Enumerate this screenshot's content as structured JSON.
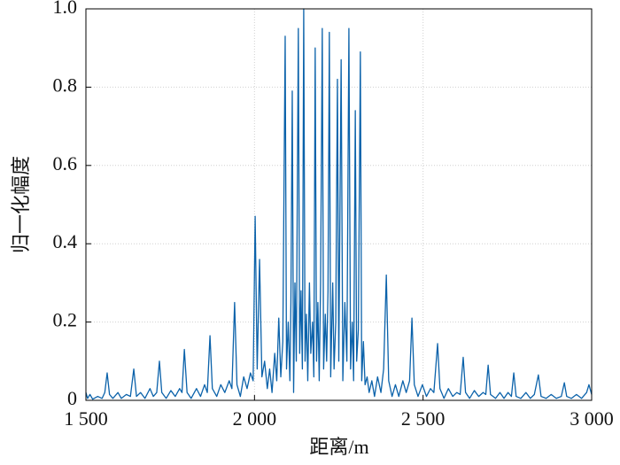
{
  "chart_data": {
    "type": "line",
    "xlabel": "距离/m",
    "ylabel": "归一化幅度",
    "color": "#0b62aa",
    "grid": true,
    "xlim": [
      1500,
      3000
    ],
    "ylim": [
      0,
      1
    ],
    "xticks": [
      {
        "value": 1500,
        "label": "1 500"
      },
      {
        "value": 2000,
        "label": "2 000"
      },
      {
        "value": 2500,
        "label": "2 500"
      },
      {
        "value": 3000,
        "label": "3 000"
      }
    ],
    "yticks": [
      0,
      0.2,
      0.4,
      0.6,
      0.8,
      {
        "value": 1,
        "label": "1.0"
      }
    ],
    "x": [
      1500,
      1505,
      1512,
      1520,
      1535,
      1548,
      1556,
      1563,
      1570,
      1580,
      1595,
      1605,
      1620,
      1632,
      1642,
      1650,
      1662,
      1675,
      1690,
      1700,
      1710,
      1718,
      1725,
      1738,
      1752,
      1765,
      1778,
      1785,
      1792,
      1800,
      1812,
      1828,
      1840,
      1852,
      1860,
      1868,
      1875,
      1888,
      1900,
      1912,
      1925,
      1933,
      1941,
      1948,
      1958,
      1968,
      1978,
      1988,
      1996,
      2002,
      2008,
      2015,
      2022,
      2030,
      2038,
      2045,
      2052,
      2060,
      2066,
      2072,
      2078,
      2084,
      2091,
      2095,
      2100,
      2105,
      2108,
      2112,
      2116,
      2120,
      2124,
      2130,
      2134,
      2138,
      2142,
      2146,
      2150,
      2154,
      2158,
      2163,
      2167,
      2172,
      2176,
      2180,
      2184,
      2188,
      2192,
      2196,
      2201,
      2205,
      2210,
      2214,
      2218,
      2222,
      2226,
      2232,
      2236,
      2241,
      2246,
      2250,
      2257,
      2262,
      2268,
      2274,
      2280,
      2285,
      2290,
      2294,
      2299,
      2303,
      2308,
      2314,
      2318,
      2323,
      2328,
      2334,
      2340,
      2348,
      2356,
      2365,
      2375,
      2383,
      2391,
      2398,
      2408,
      2418,
      2428,
      2440,
      2450,
      2460,
      2467,
      2474,
      2485,
      2498,
      2510,
      2522,
      2532,
      2543,
      2550,
      2562,
      2575,
      2588,
      2600,
      2610,
      2619,
      2626,
      2638,
      2652,
      2665,
      2678,
      2686,
      2693,
      2700,
      2715,
      2728,
      2740,
      2752,
      2762,
      2769,
      2776,
      2790,
      2805,
      2818,
      2830,
      2842,
      2850,
      2865,
      2880,
      2895,
      2910,
      2919,
      2926,
      2940,
      2955,
      2970,
      2985,
      2992,
      3000
    ],
    "values": [
      0.02,
      0.005,
      0.015,
      0.003,
      0.01,
      0.005,
      0.02,
      0.07,
      0.015,
      0.005,
      0.02,
      0.005,
      0.015,
      0.01,
      0.08,
      0.01,
      0.02,
      0.005,
      0.03,
      0.01,
      0.02,
      0.1,
      0.02,
      0.005,
      0.025,
      0.01,
      0.03,
      0.02,
      0.13,
      0.02,
      0.005,
      0.03,
      0.01,
      0.04,
      0.02,
      0.165,
      0.03,
      0.01,
      0.04,
      0.02,
      0.05,
      0.03,
      0.25,
      0.04,
      0.01,
      0.06,
      0.03,
      0.07,
      0.05,
      0.47,
      0.08,
      0.36,
      0.06,
      0.1,
      0.03,
      0.08,
      0.02,
      0.12,
      0.05,
      0.21,
      0.06,
      0.15,
      0.93,
      0.08,
      0.2,
      0.05,
      0.25,
      0.79,
      0.02,
      0.3,
      0.1,
      0.95,
      0.12,
      0.28,
      0.08,
      1.0,
      0.1,
      0.22,
      0.05,
      0.3,
      0.12,
      0.2,
      0.06,
      0.9,
      0.1,
      0.25,
      0.05,
      0.3,
      0.95,
      0.08,
      0.22,
      0.1,
      0.28,
      0.94,
      0.06,
      0.3,
      0.08,
      0.2,
      0.82,
      0.1,
      0.87,
      0.05,
      0.25,
      0.1,
      0.95,
      0.08,
      0.2,
      0.05,
      0.74,
      0.1,
      0.18,
      0.89,
      0.05,
      0.15,
      0.04,
      0.06,
      0.02,
      0.05,
      0.01,
      0.06,
      0.02,
      0.08,
      0.32,
      0.05,
      0.01,
      0.04,
      0.01,
      0.05,
      0.02,
      0.05,
      0.21,
      0.04,
      0.01,
      0.04,
      0.01,
      0.03,
      0.02,
      0.145,
      0.03,
      0.005,
      0.03,
      0.01,
      0.02,
      0.015,
      0.11,
      0.02,
      0.005,
      0.025,
      0.01,
      0.02,
      0.015,
      0.09,
      0.015,
      0.005,
      0.02,
      0.005,
      0.02,
      0.01,
      0.07,
      0.01,
      0.005,
      0.02,
      0.005,
      0.015,
      0.065,
      0.01,
      0.005,
      0.015,
      0.005,
      0.01,
      0.045,
      0.01,
      0.005,
      0.015,
      0.005,
      0.02,
      0.04,
      0.015
    ]
  }
}
